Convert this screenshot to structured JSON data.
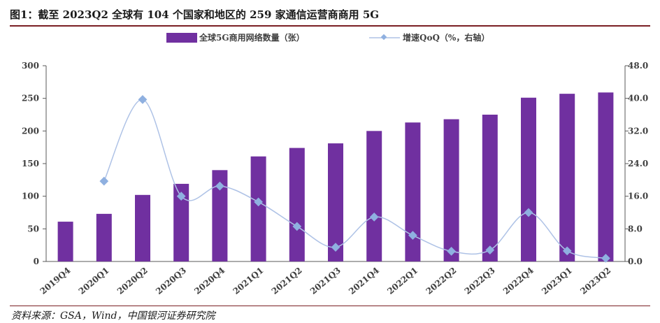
{
  "header": {
    "title": "图1：截至 2023Q2 全球有 104 个国家和地区的 259 家通信运营商商用 5G"
  },
  "footer": {
    "source": "资料来源：GSA，Wind，中国银河证券研究院"
  },
  "colors": {
    "bar": "#7030a0",
    "line": "#aec2e6",
    "marker": "#8fb0e0",
    "axis": "#595959",
    "rule": "#7a1f24"
  },
  "chart_data": {
    "type": "bar",
    "categories": [
      "2019Q4",
      "2020Q1",
      "2020Q2",
      "2020Q3",
      "2020Q4",
      "2021Q1",
      "2021Q2",
      "2021Q3",
      "2021Q4",
      "2022Q1",
      "2022Q2",
      "2022Q3",
      "2022Q4",
      "2023Q1",
      "2023Q2"
    ],
    "series": [
      {
        "name": "全球5G商用网络数量（张）",
        "type": "bar",
        "axis": "left",
        "values": [
          61,
          73,
          102,
          119,
          140,
          161,
          174,
          181,
          200,
          213,
          218,
          225,
          251,
          257,
          259
        ]
      },
      {
        "name": "增速QoQ（%，右轴）",
        "type": "line",
        "axis": "right",
        "smooth": true,
        "values": [
          null,
          19.7,
          39.7,
          16.0,
          18.5,
          14.6,
          8.6,
          3.5,
          10.9,
          6.4,
          2.5,
          2.8,
          12.0,
          2.6,
          0.8
        ]
      }
    ],
    "y_left": {
      "min": 0,
      "max": 300,
      "ticks": [
        "0",
        "50",
        "100",
        "150",
        "200",
        "250",
        "300"
      ]
    },
    "y_right": {
      "min": 0,
      "max": 48,
      "ticks": [
        "0.0",
        "8.0",
        "16.0",
        "24.0",
        "32.0",
        "40.0",
        "48.0"
      ]
    },
    "grid": false,
    "legend_position": "top-center"
  }
}
